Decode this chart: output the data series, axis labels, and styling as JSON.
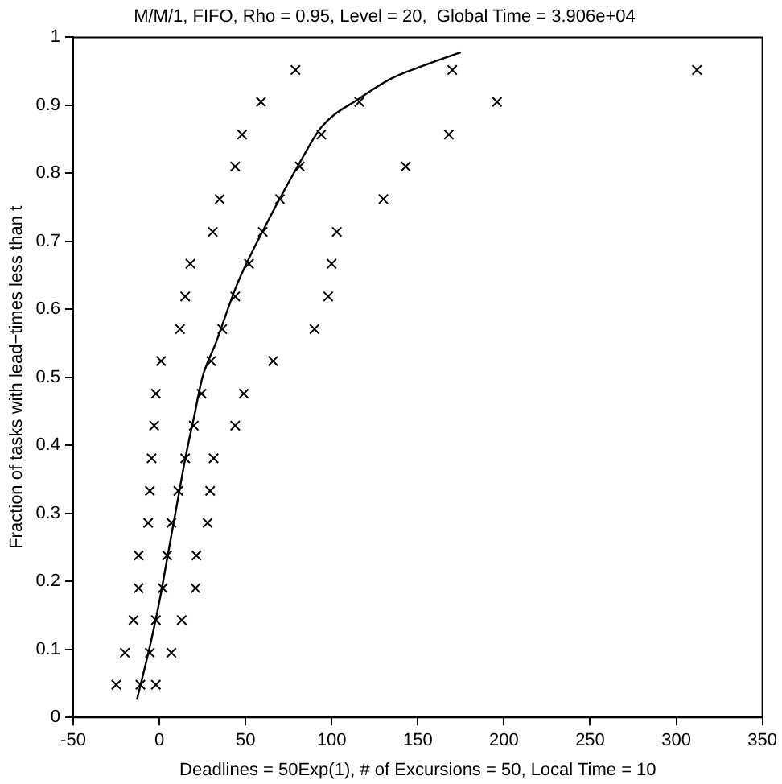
{
  "chart_data": {
    "type": "scatter",
    "title": "M/M/1, FIFO, Rho = 0.95, Level = 20,  Global Time = 3.906e+04",
    "xlabel": "Deadlines = 50Exp(1), # of Excursions = 50, Local Time = 10",
    "ylabel": "Fraction of tasks with lead−times less than t",
    "xlim": [
      -50,
      350
    ],
    "xticks": [
      -50,
      0,
      50,
      100,
      150,
      200,
      250,
      300,
      350
    ],
    "ylim": [
      0,
      1
    ],
    "yticks": [
      0,
      0.1,
      0.2,
      0.3,
      0.4,
      0.5,
      0.6,
      0.7,
      0.8,
      0.9,
      1
    ],
    "grid": false,
    "marker": "cross",
    "series": [
      {
        "color": "#000000",
        "x": [
          -25,
          -20,
          -15,
          -12,
          -12,
          -6.5,
          -5.5,
          -4.5,
          -3,
          -2,
          1,
          12,
          15,
          18,
          31,
          35,
          44,
          48,
          59,
          79,
          -11,
          -5.5,
          -2,
          2,
          4.5,
          7,
          11,
          15,
          20,
          24.5,
          30,
          36.5,
          44,
          52,
          60,
          70,
          81.5,
          94,
          116,
          170,
          -2,
          7,
          13,
          21,
          21.5,
          28,
          29.5,
          31.5,
          44,
          49,
          66,
          90,
          98,
          100,
          103,
          130,
          143,
          168,
          196,
          312
        ],
        "values": [
          0.048,
          0.095,
          0.143,
          0.19,
          0.238,
          0.286,
          0.333,
          0.381,
          0.429,
          0.476,
          0.524,
          0.571,
          0.619,
          0.667,
          0.714,
          0.762,
          0.81,
          0.857,
          0.905,
          0.952,
          0.048,
          0.095,
          0.143,
          0.19,
          0.238,
          0.286,
          0.333,
          0.381,
          0.429,
          0.476,
          0.524,
          0.571,
          0.619,
          0.667,
          0.714,
          0.762,
          0.81,
          0.857,
          0.905,
          0.952,
          0.048,
          0.095,
          0.143,
          0.19,
          0.238,
          0.286,
          0.333,
          0.381,
          0.429,
          0.476,
          0.524,
          0.571,
          0.619,
          0.667,
          0.714,
          0.762,
          0.81,
          0.857,
          0.905,
          0.952
        ]
      },
      {
        "type": "line",
        "color": "#000000",
        "marker": "none",
        "line_style": "solid",
        "x": [
          -13,
          -5,
          0,
          5,
          10,
          15,
          20,
          25,
          33,
          45,
          61,
          82,
          94,
          116,
          135,
          155,
          175
        ],
        "values": [
          0.026,
          0.11,
          0.17,
          0.24,
          0.31,
          0.38,
          0.44,
          0.5,
          0.552,
          0.636,
          0.72,
          0.818,
          0.868,
          0.91,
          0.94,
          0.96,
          0.978
        ]
      }
    ]
  }
}
